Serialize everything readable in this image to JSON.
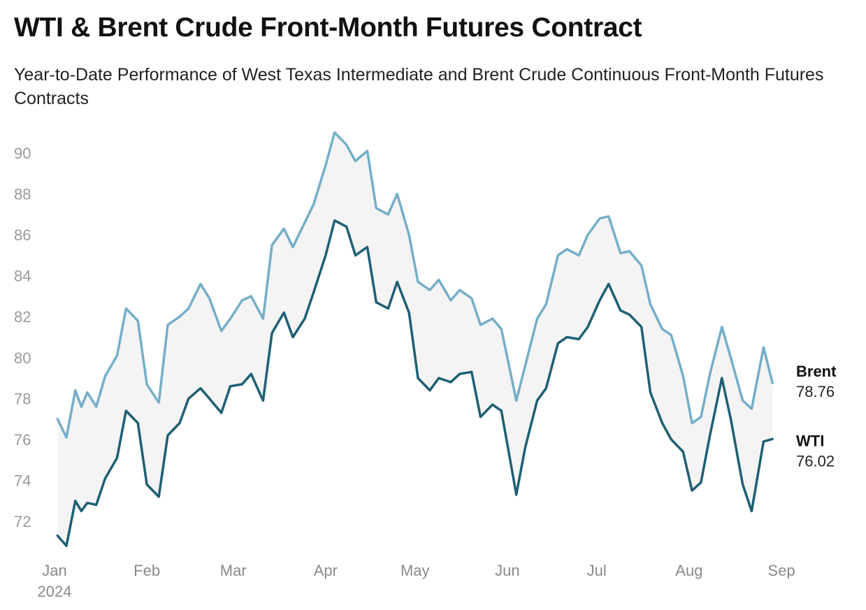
{
  "chart_data": {
    "type": "line",
    "title": "WTI & Brent Crude Front-Month Futures Contract",
    "subtitle": "Year-to-Date Performance of West Texas Intermediate and Brent Crude Continuous Front-Month Futures Contracts",
    "xlabel": "",
    "ylabel": "",
    "ylim": [
      70.5,
      91.5
    ],
    "y_ticks": [
      72,
      74,
      76,
      78,
      80,
      82,
      84,
      86,
      88,
      90
    ],
    "grid": false,
    "legend": "direct labels at line ends (right)",
    "x_ticks": [
      {
        "date": "2024-01-01",
        "label": "Jan",
        "sublabel": "2024"
      },
      {
        "date": "2024-02-01",
        "label": "Feb",
        "sublabel": ""
      },
      {
        "date": "2024-03-01",
        "label": "Mar",
        "sublabel": ""
      },
      {
        "date": "2024-04-01",
        "label": "Apr",
        "sublabel": ""
      },
      {
        "date": "2024-05-01",
        "label": "May",
        "sublabel": ""
      },
      {
        "date": "2024-06-01",
        "label": "Jun",
        "sublabel": ""
      },
      {
        "date": "2024-07-01",
        "label": "Jul",
        "sublabel": ""
      },
      {
        "date": "2024-08-01",
        "label": "Aug",
        "sublabel": ""
      },
      {
        "date": "2024-09-01",
        "label": "Sep",
        "sublabel": ""
      }
    ],
    "x": [
      "2024-01-02",
      "2024-01-05",
      "2024-01-08",
      "2024-01-10",
      "2024-01-12",
      "2024-01-15",
      "2024-01-18",
      "2024-01-22",
      "2024-01-25",
      "2024-01-29",
      "2024-02-01",
      "2024-02-05",
      "2024-02-08",
      "2024-02-12",
      "2024-02-15",
      "2024-02-19",
      "2024-02-22",
      "2024-02-26",
      "2024-02-29",
      "2024-03-04",
      "2024-03-07",
      "2024-03-11",
      "2024-03-14",
      "2024-03-18",
      "2024-03-21",
      "2024-03-25",
      "2024-03-28",
      "2024-04-01",
      "2024-04-04",
      "2024-04-08",
      "2024-04-11",
      "2024-04-15",
      "2024-04-18",
      "2024-04-22",
      "2024-04-25",
      "2024-04-29",
      "2024-05-02",
      "2024-05-06",
      "2024-05-09",
      "2024-05-13",
      "2024-05-16",
      "2024-05-20",
      "2024-05-23",
      "2024-05-27",
      "2024-05-30",
      "2024-06-04",
      "2024-06-07",
      "2024-06-11",
      "2024-06-14",
      "2024-06-18",
      "2024-06-21",
      "2024-06-25",
      "2024-06-28",
      "2024-07-02",
      "2024-07-05",
      "2024-07-09",
      "2024-07-12",
      "2024-07-16",
      "2024-07-19",
      "2024-07-23",
      "2024-07-26",
      "2024-07-30",
      "2024-08-02",
      "2024-08-05",
      "2024-08-08",
      "2024-08-12",
      "2024-08-15",
      "2024-08-19",
      "2024-08-22",
      "2024-08-26",
      "2024-08-29"
    ],
    "series": [
      {
        "name": "Brent",
        "color": "#74aec9",
        "end_label": "78.76",
        "values": [
          77.0,
          76.1,
          78.4,
          77.6,
          78.3,
          77.6,
          79.1,
          80.1,
          82.4,
          81.8,
          78.7,
          77.8,
          81.6,
          82.0,
          82.4,
          83.6,
          82.9,
          81.3,
          81.9,
          82.8,
          83.0,
          81.9,
          85.5,
          86.3,
          85.4,
          86.6,
          87.5,
          89.4,
          91.0,
          90.4,
          89.6,
          90.1,
          87.3,
          87.0,
          88.0,
          86.0,
          83.7,
          83.3,
          83.8,
          82.8,
          83.3,
          82.9,
          81.6,
          81.9,
          81.4,
          77.9,
          79.6,
          81.9,
          82.6,
          85.0,
          85.3,
          85.0,
          86.0,
          86.8,
          86.9,
          85.1,
          85.2,
          84.5,
          82.6,
          81.4,
          81.1,
          79.1,
          76.8,
          77.1,
          79.2,
          81.5,
          80.0,
          77.9,
          77.5,
          80.5,
          78.76
        ]
      },
      {
        "name": "WTI",
        "color": "#1e5f74",
        "end_label": "76.02",
        "values": [
          71.3,
          70.8,
          73.0,
          72.5,
          72.9,
          72.8,
          74.1,
          75.1,
          77.4,
          76.8,
          73.8,
          73.2,
          76.2,
          76.8,
          78.0,
          78.5,
          78.0,
          77.3,
          78.6,
          78.7,
          79.2,
          77.9,
          81.2,
          82.2,
          81.0,
          81.9,
          83.2,
          85.0,
          86.7,
          86.4,
          85.0,
          85.4,
          82.7,
          82.4,
          83.7,
          82.2,
          79.0,
          78.4,
          79.0,
          78.8,
          79.2,
          79.3,
          77.1,
          77.7,
          77.4,
          73.3,
          75.6,
          77.9,
          78.5,
          80.7,
          81.0,
          80.9,
          81.5,
          82.8,
          83.6,
          82.3,
          82.1,
          81.5,
          78.3,
          76.8,
          76.0,
          75.4,
          73.5,
          73.9,
          76.2,
          79.0,
          77.0,
          73.8,
          72.5,
          75.9,
          76.02
        ]
      }
    ]
  }
}
